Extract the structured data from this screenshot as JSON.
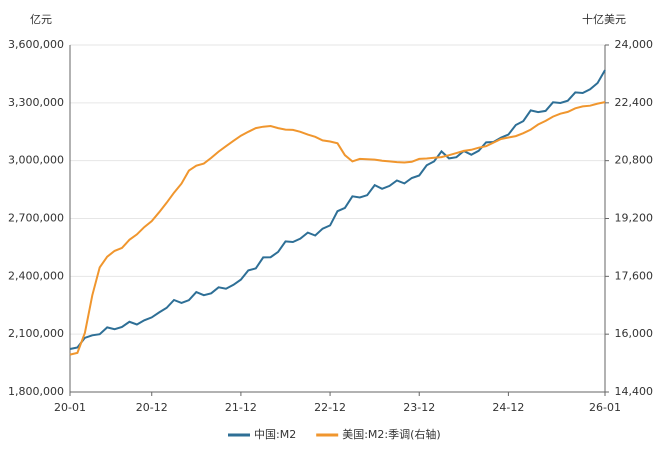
{
  "chart_data": {
    "type": "line",
    "y_axis_title": "亿元",
    "y2_axis_title": "十亿美元",
    "categories": [
      "20-01",
      null,
      null,
      null,
      null,
      null,
      null,
      null,
      null,
      null,
      null,
      "20-12",
      null,
      null,
      null,
      null,
      null,
      null,
      null,
      null,
      null,
      null,
      null,
      "21-12",
      null,
      null,
      null,
      null,
      null,
      null,
      null,
      null,
      null,
      null,
      null,
      "22-12",
      null,
      null,
      null,
      null,
      null,
      null,
      null,
      null,
      null,
      null,
      null,
      "23-12",
      null,
      null,
      null,
      null,
      null,
      null,
      null,
      null,
      null,
      null,
      null,
      "24-12",
      null,
      null,
      null,
      null,
      null,
      null,
      null,
      null,
      null,
      null,
      null,
      null,
      "26-01"
    ],
    "series": [
      {
        "name": "中国:M2",
        "color": "#2e6f96",
        "axis": "y",
        "values": [
          2023000,
          2031000,
          2081000,
          2094000,
          2100000,
          2135000,
          2126000,
          2137000,
          2164000,
          2150000,
          2172000,
          2187000,
          2213000,
          2236000,
          2277000,
          2262000,
          2276000,
          2318000,
          2302000,
          2312000,
          2343000,
          2336000,
          2356000,
          2383000,
          2431000,
          2441000,
          2498000,
          2499000,
          2527000,
          2581000,
          2578000,
          2595000,
          2627000,
          2612000,
          2647000,
          2664000,
          2738000,
          2755000,
          2815000,
          2809000,
          2821000,
          2873000,
          2854000,
          2869000,
          2897000,
          2882000,
          2910000,
          2923000,
          2976000,
          2996000,
          3048000,
          3012000,
          3018000,
          3050000,
          3031000,
          3051000,
          3095000,
          3097000,
          3119000,
          3135000,
          3185000,
          3205000,
          3261000,
          3252000,
          3258000,
          3303000,
          3299000,
          3311000,
          3354000,
          3351000,
          3370000,
          3403000,
          3470000
        ]
      },
      {
        "name": "美国:M2:季调(右轴)",
        "color": "#f0962e",
        "axis": "y2",
        "values": [
          15434,
          15483,
          16038,
          17075,
          17846,
          18142,
          18303,
          18386,
          18610,
          18760,
          18961,
          19127,
          19375,
          19635,
          19915,
          20166,
          20524,
          20661,
          20719,
          20876,
          21050,
          21200,
          21350,
          21490,
          21600,
          21700,
          21740,
          21760,
          21700,
          21660,
          21650,
          21600,
          21520,
          21460,
          21360,
          21330,
          21280,
          20950,
          20780,
          20850,
          20840,
          20830,
          20800,
          20780,
          20760,
          20750,
          20770,
          20850,
          20860,
          20880,
          20900,
          20950,
          21010,
          21070,
          21100,
          21160,
          21200,
          21300,
          21400,
          21440,
          21480,
          21560,
          21660,
          21800,
          21900,
          22020,
          22100,
          22150,
          22250,
          22300,
          22320,
          22380,
          22420
        ]
      }
    ],
    "ylim": [
      1800000,
      3600000
    ],
    "yticks": [
      {
        "value": 1800000,
        "label": "1,800,000"
      },
      {
        "value": 2100000,
        "label": "2,100,000"
      },
      {
        "value": 2400000,
        "label": "2,400,000"
      },
      {
        "value": 2700000,
        "label": "2,700,000"
      },
      {
        "value": 3000000,
        "label": "3,000,000"
      },
      {
        "value": 3300000,
        "label": "3,300,000"
      },
      {
        "value": 3600000,
        "label": "3,600,000"
      }
    ],
    "y2lim": [
      14400,
      24000
    ],
    "y2ticks": [
      {
        "value": 14400,
        "label": "14,400"
      },
      {
        "value": 16000,
        "label": "16,000"
      },
      {
        "value": 17600,
        "label": "17,600"
      },
      {
        "value": 19200,
        "label": "19,200"
      },
      {
        "value": 20800,
        "label": "20,800"
      },
      {
        "value": 22400,
        "label": "22,400"
      },
      {
        "value": 24000,
        "label": "24,000"
      }
    ],
    "grid": true
  }
}
